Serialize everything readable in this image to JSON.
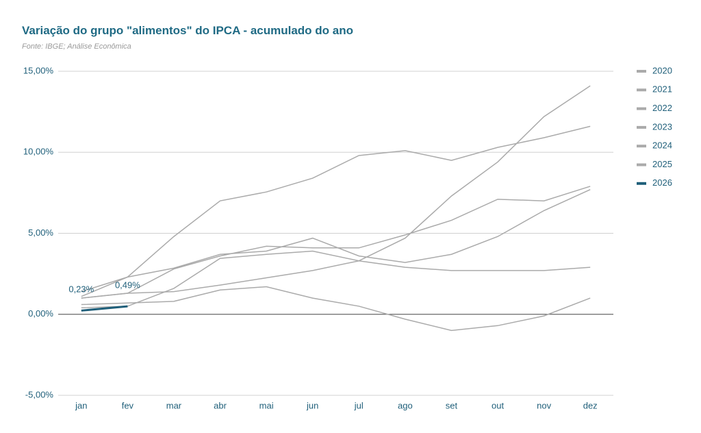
{
  "chart_data": {
    "type": "line",
    "title": "Variação do grupo \"alimentos\" do IPCA - acumulado do ano",
    "subtitle": "Fonte: IBGE; Análise Econômica",
    "categories": [
      "jan",
      "fev",
      "mar",
      "abr",
      "mai",
      "jun",
      "jul",
      "ago",
      "set",
      "out",
      "nov",
      "dez"
    ],
    "series": [
      {
        "name": "2020",
        "color": "#aaaaaa",
        "values": [
          0.4,
          0.5,
          1.6,
          3.45,
          3.7,
          3.9,
          3.3,
          4.7,
          7.3,
          9.4,
          12.2,
          14.1
        ]
      },
      {
        "name": "2021",
        "color": "#aaaaaa",
        "values": [
          1.0,
          1.3,
          2.8,
          3.6,
          4.2,
          4.1,
          4.1,
          4.9,
          5.8,
          7.1,
          7.0,
          7.9
        ]
      },
      {
        "name": "2022",
        "color": "#aaaaaa",
        "values": [
          1.1,
          2.3,
          4.8,
          7.0,
          7.55,
          8.4,
          9.8,
          10.1,
          9.5,
          10.3,
          10.9,
          11.6
        ]
      },
      {
        "name": "2023",
        "color": "#aaaaaa",
        "values": [
          0.6,
          0.7,
          0.8,
          1.5,
          1.7,
          1.0,
          0.5,
          -0.3,
          -1.0,
          -0.7,
          -0.1,
          1.0
        ]
      },
      {
        "name": "2024",
        "color": "#aaaaaa",
        "values": [
          1.4,
          2.3,
          2.85,
          3.7,
          3.9,
          4.7,
          3.6,
          3.2,
          3.7,
          4.8,
          6.4,
          7.7
        ]
      },
      {
        "name": "2025",
        "color": "#aaaaaa",
        "values": [
          1.0,
          1.3,
          1.4,
          1.8,
          2.25,
          2.7,
          3.3,
          2.9,
          2.7,
          2.7,
          2.7,
          2.9
        ]
      },
      {
        "name": "2026",
        "color": "#1f5f7a",
        "values": [
          0.23,
          0.49,
          null,
          null,
          null,
          null,
          null,
          null,
          null,
          null,
          null,
          null
        ],
        "value_labels": [
          "0,23%",
          "0,49%",
          null,
          null,
          null,
          null,
          null,
          null,
          null,
          null,
          null,
          null
        ]
      }
    ],
    "ylim": [
      -5,
      15
    ],
    "yticks": [
      {
        "value": -5,
        "label": "-5,00%"
      },
      {
        "value": 0,
        "label": "0,00%"
      },
      {
        "value": 5,
        "label": "5,00%"
      },
      {
        "value": 10,
        "label": "10,00%"
      },
      {
        "value": 15,
        "label": "15,00%"
      }
    ],
    "grid": true,
    "legend": "right"
  }
}
